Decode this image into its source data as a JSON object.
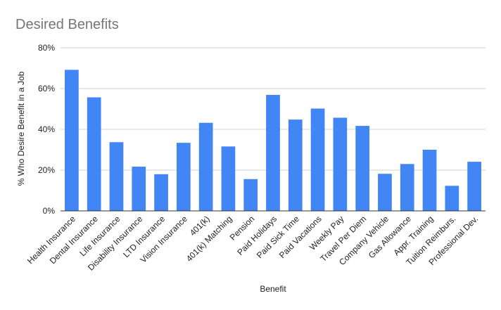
{
  "chart_data": {
    "type": "bar",
    "title": "Desired Benefits",
    "xlabel": "Benefit",
    "ylabel": "% Who Desire Benefit in a Job",
    "ylim": [
      0,
      80
    ],
    "yticks": [
      0,
      20,
      40,
      60,
      80
    ],
    "ytick_labels": [
      "0%",
      "20%",
      "40%",
      "60%",
      "80%"
    ],
    "grid": true,
    "legend": "none",
    "bar_color": "#4285f4",
    "categories": [
      "Health Insurance",
      "Dental Insurance",
      "Life Insurance",
      "Disability Insurance",
      "LTD Insurance",
      "Vision Insurance",
      "401(k)",
      "401(k) Matching",
      "Pension",
      "Paid Holidays",
      "Paid Sick Time",
      "Paid Vacations",
      "Weekly Pay",
      "Travel Per Diem",
      "Company Vehicle",
      "Gas Allowance",
      "Appr. Training",
      "Tuition Reimburs.",
      "Professional Dev."
    ],
    "values": [
      69.2,
      55.7,
      33.7,
      21.7,
      18.0,
      33.4,
      43.2,
      31.6,
      15.6,
      56.9,
      44.8,
      50.2,
      45.7,
      41.7,
      18.2,
      23.0,
      30.0,
      12.3,
      24.1
    ]
  }
}
